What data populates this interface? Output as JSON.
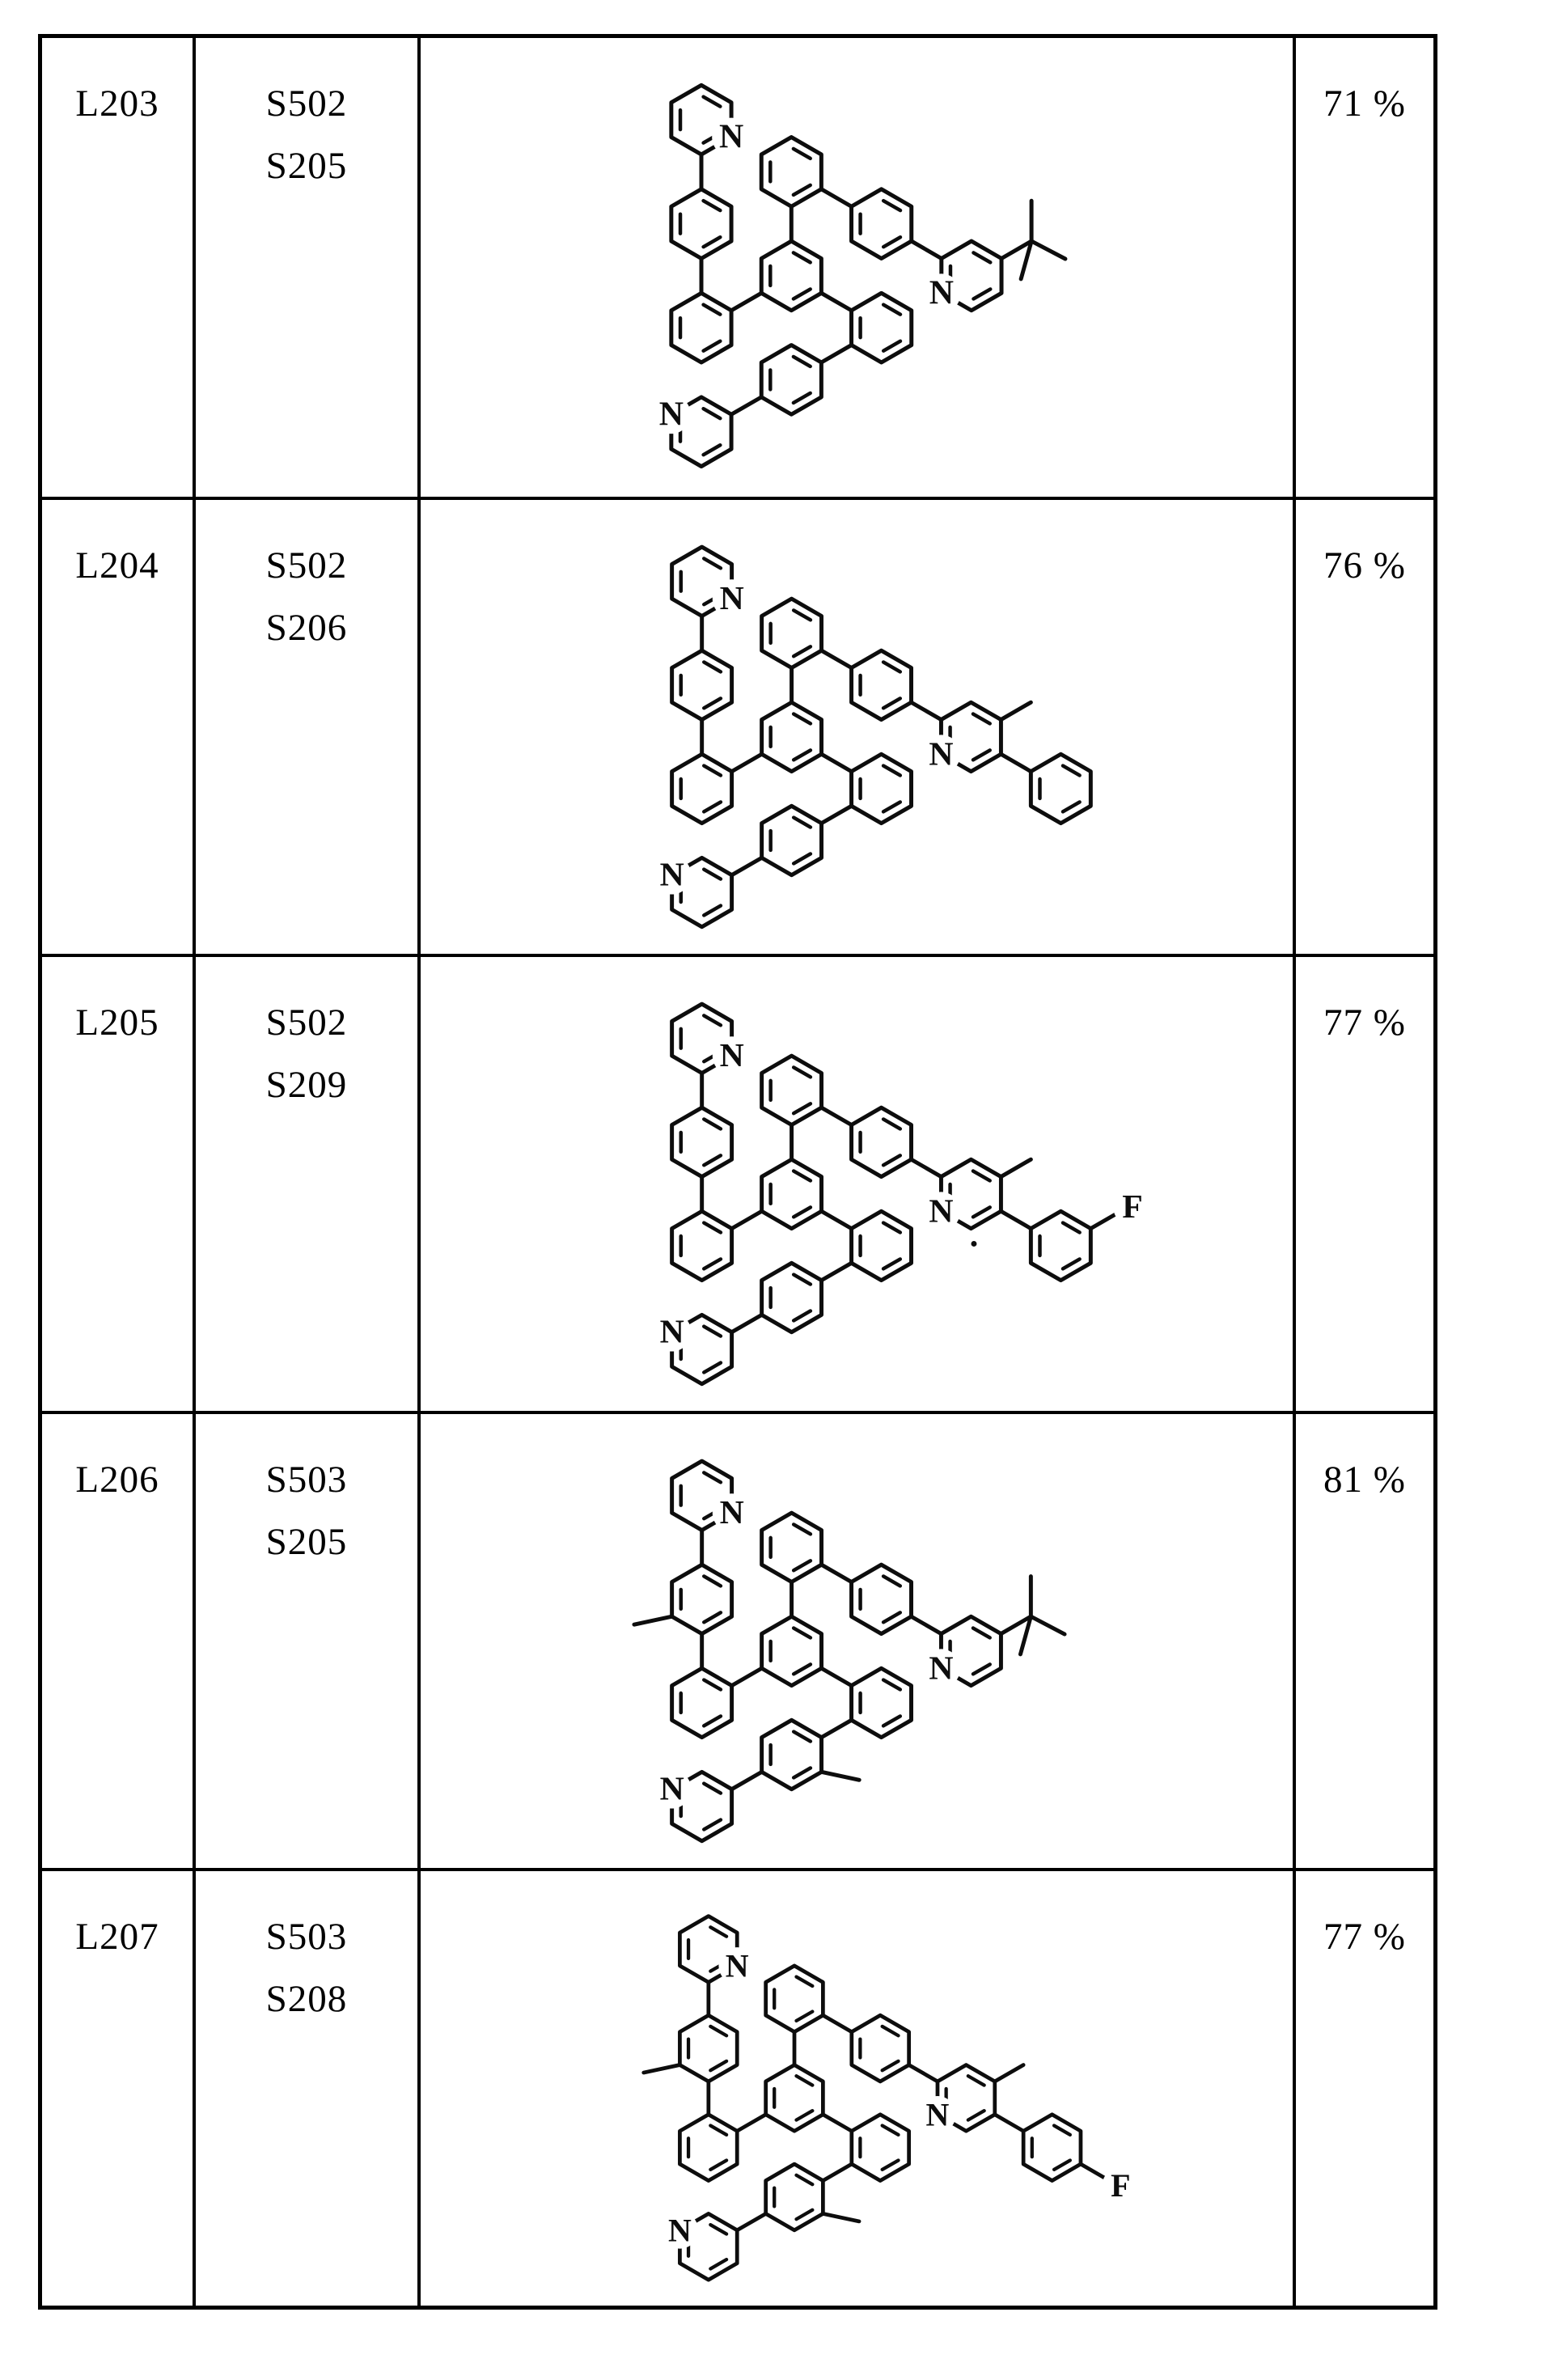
{
  "table": {
    "rows": [
      {
        "ligand": "L203",
        "reactants": [
          "S502",
          "S205"
        ],
        "yield": "71 %",
        "structure": {
          "atom_labels": [
            "N",
            "N",
            "N"
          ],
          "right_arm": "tbu",
          "ring_methyls": false,
          "dot": false
        }
      },
      {
        "ligand": "L204",
        "reactants": [
          "S502",
          "S206"
        ],
        "yield": "76 %",
        "structure": {
          "atom_labels": [
            "N",
            "N",
            "N"
          ],
          "right_arm": "me_phenyl",
          "ring_methyls": false,
          "dot": false
        }
      },
      {
        "ligand": "L205",
        "reactants": [
          "S502",
          "S209"
        ],
        "yield": "77 %",
        "structure": {
          "atom_labels": [
            "N",
            "N",
            "N"
          ],
          "fluorine_label": "F",
          "right_arm": "me_3F_phenyl",
          "ring_methyls": false,
          "dot": true
        }
      },
      {
        "ligand": "L206",
        "reactants": [
          "S503",
          "S205"
        ],
        "yield": "81 %",
        "structure": {
          "atom_labels": [
            "N",
            "N",
            "N"
          ],
          "right_arm": "tbu",
          "ring_methyls": true,
          "dot": false
        }
      },
      {
        "ligand": "L207",
        "reactants": [
          "S503",
          "S208"
        ],
        "yield": "77 %",
        "structure": {
          "atom_labels": [
            "N",
            "N",
            "N"
          ],
          "fluorine_label": "F",
          "right_arm": "me_4F_phenyl",
          "ring_methyls": true,
          "dot": false
        }
      }
    ]
  }
}
